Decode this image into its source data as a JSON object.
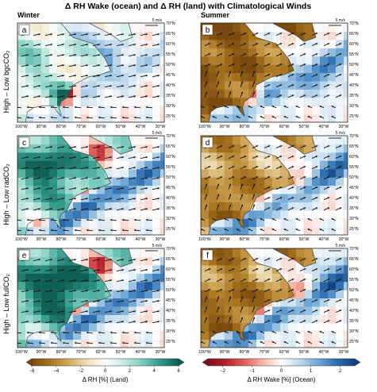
{
  "title": "Δ RH Wake (ocean) and Δ RH (land) with Climatological Winds",
  "columns": [
    {
      "label": "Winter"
    },
    {
      "label": "Summer"
    }
  ],
  "rows": [
    {
      "label": "High – Low bgcCO₂"
    },
    {
      "label": "High – Low radCO₂"
    },
    {
      "label": "High – Low fullCO₂"
    }
  ],
  "panel_letters": [
    "a",
    "b",
    "c",
    "d",
    "e",
    "f"
  ],
  "wind_scale_label": "5 m/s",
  "colors": {
    "land_brown": "#a8741e",
    "land_teal": "#2f9a8a",
    "ocean_red": "#b8222b",
    "ocean_blue": "#2e6fb0"
  },
  "chart_data": [
    {
      "type": "heatmap",
      "panel": "a",
      "season": "Winter",
      "experiment": "High – Low bgcCO₂",
      "xticks": [
        "100°W",
        "90°W",
        "80°W",
        "70°W",
        "60°W",
        "50°W",
        "40°W",
        "30°W"
      ],
      "yticks": [
        "25°N",
        "30°N",
        "35°N",
        "40°N",
        "45°N",
        "50°N",
        "55°N",
        "60°N",
        "65°N",
        "70°N"
      ],
      "xlim": [
        -102,
        -28
      ],
      "ylim": [
        22,
        70
      ]
    },
    {
      "type": "heatmap",
      "panel": "b",
      "season": "Summer",
      "experiment": "High – Low bgcCO₂",
      "xticks": [
        "100°W",
        "90°W",
        "80°W",
        "70°W",
        "60°W",
        "50°W",
        "40°W",
        "30°W"
      ],
      "yticks": [
        "25°N",
        "30°N",
        "35°N",
        "40°N",
        "45°N",
        "50°N",
        "55°N",
        "60°N",
        "65°N",
        "70°N"
      ],
      "xlim": [
        -102,
        -28
      ],
      "ylim": [
        22,
        70
      ]
    },
    {
      "type": "heatmap",
      "panel": "c",
      "season": "Winter",
      "experiment": "High – Low radCO₂",
      "xticks": [
        "100°W",
        "90°W",
        "80°W",
        "70°W",
        "60°W",
        "50°W",
        "40°W",
        "30°W"
      ],
      "yticks": [
        "25°N",
        "30°N",
        "35°N",
        "40°N",
        "45°N",
        "50°N",
        "55°N",
        "60°N",
        "65°N",
        "70°N"
      ],
      "xlim": [
        -102,
        -28
      ],
      "ylim": [
        22,
        70
      ]
    },
    {
      "type": "heatmap",
      "panel": "d",
      "season": "Summer",
      "experiment": "High – Low radCO₂",
      "xticks": [
        "100°W",
        "90°W",
        "80°W",
        "70°W",
        "60°W",
        "50°W",
        "40°W",
        "30°W"
      ],
      "yticks": [
        "25°N",
        "30°N",
        "35°N",
        "40°N",
        "45°N",
        "50°N",
        "55°N",
        "60°N",
        "65°N",
        "70°N"
      ],
      "xlim": [
        -102,
        -28
      ],
      "ylim": [
        22,
        70
      ]
    },
    {
      "type": "heatmap",
      "panel": "e",
      "season": "Winter",
      "experiment": "High – Low fullCO₂",
      "xticks": [
        "100°W",
        "90°W",
        "80°W",
        "70°W",
        "60°W",
        "50°W",
        "40°W",
        "30°W"
      ],
      "yticks": [
        "25°N",
        "30°N",
        "35°N",
        "40°N",
        "45°N",
        "50°N",
        "55°N",
        "60°N",
        "65°N",
        "70°N"
      ],
      "xlim": [
        -102,
        -28
      ],
      "ylim": [
        22,
        70
      ]
    },
    {
      "type": "heatmap",
      "panel": "f",
      "season": "Summer",
      "experiment": "High – Low fullCO₂",
      "xticks": [
        "100°W",
        "90°W",
        "80°W",
        "70°W",
        "60°W",
        "50°W",
        "40°W",
        "30°W"
      ],
      "yticks": [
        "25°N",
        "30°N",
        "35°N",
        "40°N",
        "45°N",
        "50°N",
        "55°N",
        "60°N",
        "65°N",
        "70°N"
      ],
      "xlim": [
        -102,
        -28
      ],
      "ylim": [
        22,
        70
      ]
    }
  ],
  "colorbars": [
    {
      "label": "Δ RH [%] (Land)",
      "ticks": [
        "−6",
        "−4",
        "−2",
        "0",
        "2",
        "4",
        "6"
      ],
      "range": [
        -6,
        6
      ],
      "palette": [
        "#7a4a0c",
        "#a8741e",
        "#d2a95a",
        "#efdfb8",
        "#ffffff",
        "#c6ebe3",
        "#7dcdbf",
        "#2f9a8a",
        "#0e5f54"
      ]
    },
    {
      "label": "Δ RH Wake [%] (Ocean)",
      "ticks": [
        "−2",
        "−1",
        "0",
        "1",
        "2"
      ],
      "range": [
        -2.5,
        2.5
      ],
      "palette": [
        "#7a0e1c",
        "#b8222b",
        "#e0615a",
        "#f6b8a8",
        "#ffffff",
        "#bcd8ec",
        "#6da7d6",
        "#2e6fb0",
        "#123f80"
      ]
    }
  ]
}
